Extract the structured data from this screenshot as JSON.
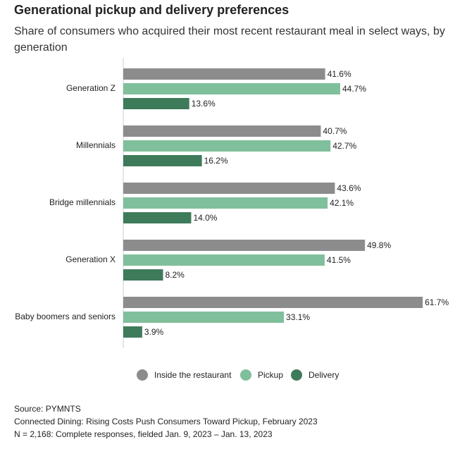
{
  "chart_data": {
    "type": "hbar",
    "title": "Generational pickup and delivery preferences",
    "subtitle": "Share of consumers who acquired their most recent restaurant meal in select ways, by generation",
    "categories": [
      "Generation Z",
      "Millennials",
      "Bridge millennials",
      "Generation X",
      "Baby boomers and seniors"
    ],
    "series": [
      {
        "name": "Inside the restaurant",
        "color": "#8c8c8c",
        "values": [
          41.6,
          40.7,
          43.6,
          49.8,
          61.7
        ],
        "value_labels": [
          "41.6%",
          "40.7%",
          "43.6%",
          "49.8%",
          "61.7%"
        ]
      },
      {
        "name": "Pickup",
        "color": "#80bf9b",
        "values": [
          44.7,
          42.7,
          42.1,
          41.5,
          33.1
        ],
        "value_labels": [
          "44.7%",
          "42.7%",
          "42.1%",
          "41.5%",
          "33.1%"
        ]
      },
      {
        "name": "Delivery",
        "color": "#3e7b5b",
        "values": [
          13.6,
          16.2,
          14.0,
          8.2,
          3.9
        ],
        "value_labels": [
          "13.6%",
          "16.2%",
          "14.0%",
          "8.2%",
          "3.9%"
        ]
      }
    ],
    "legend": "bottom",
    "notes": [
      "Source: PYMNTS",
      "Connected Dining: Rising Costs Push Consumers Toward Pickup, February 2023",
      "N = 2,168: Complete responses, fielded Jan. 9, 2023 – Jan. 13, 2023"
    ]
  }
}
